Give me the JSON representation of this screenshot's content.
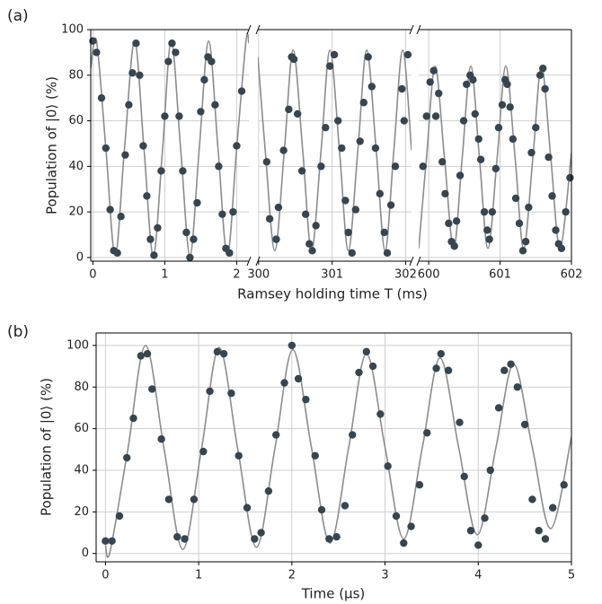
{
  "chart_data": [
    {
      "type": "scatter",
      "panel_label": "(a)",
      "ylabel": "Population of |0⟩ (%)",
      "xlabel": "Ramsey holding time T (ms)",
      "ylim": [
        -1.6,
        100
      ],
      "yticks": [
        0,
        20,
        40,
        60,
        80,
        100
      ],
      "grid": true,
      "point_color": "#36454f",
      "fit_color": "#8c8c8c",
      "panels": [
        {
          "xlim": [
            -0.03,
            2.17
          ],
          "xticks": [
            0,
            1,
            2
          ],
          "points": {
            "x": [
              0,
              0.05,
              0.12,
              0.18,
              0.24,
              0.29,
              0.34,
              0.39,
              0.45,
              0.5,
              0.55,
              0.6,
              0.65,
              0.7,
              0.75,
              0.8,
              0.85,
              0.9,
              0.95,
              1.0,
              1.05,
              1.1,
              1.15,
              1.2,
              1.25,
              1.3,
              1.35,
              1.4,
              1.45,
              1.5,
              1.55,
              1.6,
              1.65,
              1.7,
              1.75,
              1.8,
              1.85,
              1.9,
              1.95,
              2.0,
              2.07
            ],
            "values": [
              95,
              90,
              70,
              48,
              21,
              3,
              2,
              18,
              45,
              67,
              81,
              94,
              80,
              49,
              27,
              8,
              1,
              13,
              38,
              62,
              86,
              94,
              90,
              62,
              38,
              11,
              0,
              8,
              24,
              64,
              78,
              88,
              86,
              67,
              40,
              19,
              4,
              2,
              20,
              49,
              73
            ]
          },
          "fit": {
            "x": [
              -0.03,
              0.05,
              0.18,
              0.31,
              0.44,
              0.58,
              0.71,
              0.84,
              0.97,
              1.09,
              1.22,
              1.35,
              1.48,
              1.61,
              1.74,
              1.87,
              2.0,
              2.13,
              2.17
            ],
            "values": [
              83,
              95,
              48,
              1,
              48,
              95,
              48,
              1,
              48,
              95,
              48,
              1,
              48,
              95,
              48,
              1,
              48,
              95,
              94
            ]
          }
        },
        {
          "xlim": [
            299.99,
            302.08
          ],
          "xticks": [
            300,
            301,
            302
          ],
          "points": {
            "x": [
              300.11,
              300.15,
              300.24,
              300.27,
              300.34,
              300.41,
              300.45,
              300.48,
              300.53,
              300.59,
              300.64,
              300.69,
              300.73,
              300.78,
              300.85,
              300.91,
              300.97,
              301.03,
              301.08,
              301.13,
              301.18,
              301.22,
              301.27,
              301.32,
              301.38,
              301.43,
              301.49,
              301.54,
              301.59,
              301.65,
              301.71,
              301.75,
              301.8,
              301.86,
              301.95,
              301.98,
              302.03
            ],
            "values": [
              42,
              17,
              8,
              22,
              47,
              65,
              88,
              87,
              63,
              38,
              19,
              6,
              3,
              14,
              40,
              57,
              84,
              89,
              60,
              48,
              25,
              11,
              2,
              21,
              51,
              68,
              88,
              75,
              48,
              28,
              11,
              2,
              23,
              40,
              74,
              60,
              89
            ]
          },
          "fit": {
            "x": [
              299.99,
              300.09,
              300.22,
              300.35,
              300.47,
              300.6,
              300.72,
              300.85,
              300.97,
              301.1,
              301.22,
              301.35,
              301.47,
              301.6,
              301.72,
              301.84,
              301.96,
              302.08
            ],
            "values": [
              88,
              47,
              3,
              47,
              91,
              47,
              3,
              47,
              91,
              47,
              3,
              47,
              91,
              47,
              3,
              47,
              91,
              47
            ]
          }
        },
        {
          "xlim": [
            599.86,
            602.0
          ],
          "xticks": [
            600,
            601,
            602
          ],
          "points": {
            "x": [
              599.92,
              599.97,
              600.02,
              600.07,
              600.1,
              600.14,
              600.19,
              600.23,
              600.28,
              600.32,
              600.36,
              600.39,
              600.44,
              600.49,
              600.53,
              600.58,
              600.62,
              600.65,
              600.7,
              600.73,
              600.78,
              600.82,
              600.85,
              600.89,
              600.94,
              600.98,
              601.03,
              601.07,
              601.1,
              601.14,
              601.18,
              601.22,
              601.27,
              601.32,
              601.36,
              601.4,
              601.44,
              601.5,
              601.56,
              601.6,
              601.63,
              601.68,
              601.73,
              601.78,
              601.82,
              601.86,
              601.92,
              601.98
            ],
            "values": [
              40,
              62,
              77,
              82,
              62,
              72,
              42,
              28,
              15,
              7,
              5,
              16,
              36,
              60,
              76,
              80,
              78,
              63,
              52,
              43,
              20,
              12,
              8,
              20,
              39,
              57,
              67,
              78,
              76,
              66,
              52,
              26,
              15,
              3,
              7,
              22,
              46,
              57,
              80,
              83,
              74,
              44,
              27,
              12,
              6,
              4,
              20,
              35
            ]
          },
          "fit": {
            "x": [
              599.86,
              599.97,
              600.09,
              600.22,
              600.35,
              600.47,
              600.59,
              600.71,
              600.83,
              600.96,
              601.08,
              601.21,
              601.33,
              601.46,
              601.58,
              601.71,
              601.84,
              602.0
            ],
            "values": [
              4,
              44,
              84,
              44,
              4,
              44,
              84,
              44,
              4,
              44,
              84,
              44,
              4,
              44,
              84,
              44,
              4,
              46
            ]
          }
        }
      ]
    },
    {
      "type": "scatter",
      "panel_label": "(b)",
      "ylabel": "Population of |0⟩ (%)",
      "xlabel": "Time (μs)",
      "ylim": [
        -4,
        106
      ],
      "yticks": [
        0,
        20,
        40,
        60,
        80,
        100
      ],
      "grid": true,
      "point_color": "#36454f",
      "fit_color": "#8c8c8c",
      "panels": [
        {
          "xlim": [
            -0.1,
            5
          ],
          "xticks": [
            0,
            1,
            2,
            3,
            4,
            5
          ],
          "points": {
            "x": [
              0,
              0.07,
              0.15,
              0.23,
              0.3,
              0.38,
              0.45,
              0.5,
              0.6,
              0.68,
              0.77,
              0.85,
              0.95,
              1.05,
              1.12,
              1.2,
              1.27,
              1.35,
              1.43,
              1.52,
              1.6,
              1.67,
              1.75,
              1.83,
              1.92,
              2.0,
              2.07,
              2.15,
              2.25,
              2.32,
              2.4,
              2.48,
              2.57,
              2.65,
              2.72,
              2.8,
              2.87,
              2.95,
              3.03,
              3.12,
              3.2,
              3.28,
              3.37,
              3.45,
              3.55,
              3.6,
              3.68,
              3.8,
              3.85,
              3.92,
              4.0,
              4.07,
              4.13,
              4.22,
              4.28,
              4.35,
              4.42,
              4.5,
              4.58,
              4.65,
              4.72,
              4.8,
              4.92
            ],
            "values": [
              6,
              6,
              18,
              46,
              65,
              95,
              96,
              79,
              55,
              26,
              8,
              7,
              26,
              49,
              78,
              97,
              96,
              77,
              47,
              22,
              7,
              10,
              30,
              57,
              82,
              100,
              84,
              74,
              47,
              21,
              7,
              8,
              23,
              57,
              87,
              97,
              90,
              67,
              42,
              18,
              5,
              13,
              33,
              58,
              89,
              96,
              88,
              63,
              37,
              11,
              4,
              17,
              40,
              70,
              88,
              91,
              80,
              62,
              26,
              11,
              7,
              22,
              33
            ]
          },
          "fit": {
            "x": [
              0,
              0.05,
              0.24,
              0.43,
              0.63,
              0.83,
              1.03,
              1.22,
              1.42,
              1.62,
              1.82,
              2.01,
              2.21,
              2.41,
              2.61,
              2.8,
              3.0,
              3.2,
              3.4,
              3.59,
              3.79,
              3.99,
              4.19,
              4.38,
              4.58,
              4.78,
              5
            ],
            "values": [
              4,
              1,
              50,
              100,
              50,
              2,
              50,
              99,
              50,
              3,
              51,
              98,
              51,
              5,
              51,
              96,
              51,
              7,
              51,
              94,
              51,
              9,
              51,
              91,
              51,
              12,
              56
            ]
          }
        }
      ]
    }
  ]
}
